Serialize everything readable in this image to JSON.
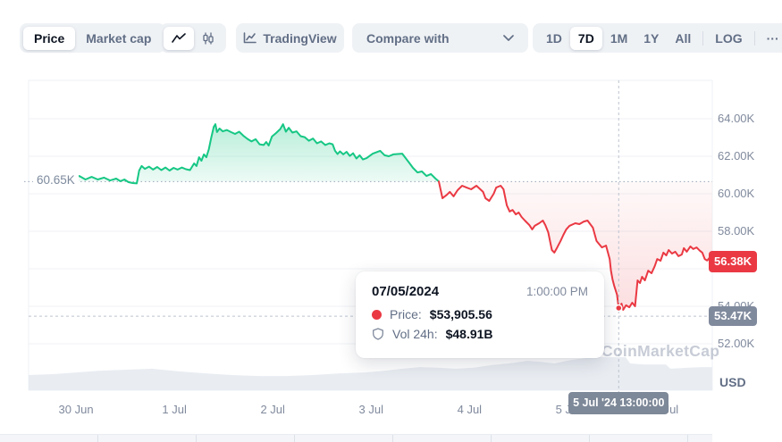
{
  "toolbar": {
    "metric_toggle": {
      "price": "Price",
      "market_cap": "Market cap"
    },
    "tradingview_label": "TradingView",
    "compare_label": "Compare with",
    "ranges": [
      "1D",
      "7D",
      "1M",
      "1Y",
      "All"
    ],
    "selected_range": "7D",
    "log_label": "LOG",
    "more_label": "···"
  },
  "tooltip": {
    "date": "07/05/2024",
    "time": "1:00:00 PM",
    "price_label": "Price:",
    "price_value": "$53,905.56",
    "vol_label": "Vol 24h:",
    "vol_value": "$48.91B"
  },
  "watermark": "CoinMarketCap",
  "colors": {
    "up": "#16c784",
    "down": "#ea3943",
    "badge_gray": "#808a9d",
    "axis_text": "#808a9d",
    "toolbar_bg": "#eff2f5",
    "gridline": "#f0f2f5"
  },
  "chart_data": {
    "type": "line",
    "title": "Price chart, 7D range, USD",
    "unit": "USD",
    "baseline_price": 60650,
    "baseline_label": "60.65K",
    "last_price": 56380,
    "last_price_label": "56.38K",
    "y_gridline_prices": [
      64000,
      62000,
      60000,
      58000,
      56000,
      54000,
      52000
    ],
    "y_ticks": [
      {
        "price": 64000,
        "label": "64.00K"
      },
      {
        "price": 62000,
        "label": "62.00K"
      },
      {
        "price": 60000,
        "label": "60.00K"
      },
      {
        "price": 58000,
        "label": "58.00K"
      },
      {
        "price": 54000,
        "label": "54.00K"
      },
      {
        "price": 52000,
        "label": "52.00K"
      }
    ],
    "x_ticks": [
      {
        "t": 2.2,
        "label": "30 Jun"
      },
      {
        "t": 26.2,
        "label": "1 Jul"
      },
      {
        "t": 50.2,
        "label": "2 Jul"
      },
      {
        "t": 74.2,
        "label": "3 Jul"
      },
      {
        "t": 98.2,
        "label": "4 Jul"
      },
      {
        "t": 122.2,
        "label": "5 Jul"
      },
      {
        "t": 146.2,
        "label": "6 Jul"
      }
    ],
    "crosshair": {
      "t": 134.6,
      "price": 53905.56,
      "hline_price": 53470,
      "hline_label": "53.47K",
      "x_label": "5 Jul '24 13:00:00"
    },
    "series": [
      {
        "name": "price_above_open",
        "color": "#16c784",
        "points": [
          [
            0,
            61000
          ],
          [
            1.5,
            60860
          ],
          [
            3,
            60950
          ],
          [
            4.5,
            60760
          ],
          [
            6,
            60900
          ],
          [
            7.5,
            60760
          ],
          [
            9,
            60860
          ],
          [
            10.5,
            60710
          ],
          [
            12,
            60810
          ],
          [
            13,
            60670
          ],
          [
            14,
            60760
          ],
          [
            15,
            60620
          ],
          [
            16,
            60570
          ],
          [
            17,
            60550
          ],
          [
            17.6,
            61240
          ],
          [
            18.2,
            61480
          ],
          [
            19,
            61330
          ],
          [
            20,
            61450
          ],
          [
            21,
            61290
          ],
          [
            22,
            61430
          ],
          [
            23,
            61260
          ],
          [
            24,
            61400
          ],
          [
            25,
            61240
          ],
          [
            26,
            61380
          ],
          [
            27,
            61290
          ],
          [
            28,
            61400
          ],
          [
            29,
            61310
          ],
          [
            30,
            61260
          ],
          [
            31,
            61620
          ],
          [
            31.6,
            61480
          ],
          [
            32.2,
            61950
          ],
          [
            32.8,
            61760
          ],
          [
            33.4,
            62100
          ],
          [
            34,
            61950
          ],
          [
            34.6,
            62380
          ],
          [
            35.2,
            63000
          ],
          [
            35.8,
            63570
          ],
          [
            36.2,
            63710
          ],
          [
            36.6,
            63290
          ],
          [
            37.2,
            63480
          ],
          [
            38,
            63330
          ],
          [
            39,
            63400
          ],
          [
            40,
            63290
          ],
          [
            41,
            63190
          ],
          [
            42,
            63310
          ],
          [
            43,
            63100
          ],
          [
            44,
            62930
          ],
          [
            45,
            62790
          ],
          [
            46,
            62910
          ],
          [
            47,
            62640
          ],
          [
            48,
            62600
          ],
          [
            48.6,
            62760
          ],
          [
            49.2,
            62570
          ],
          [
            50,
            63050
          ],
          [
            51,
            63240
          ],
          [
            52,
            63450
          ],
          [
            52.7,
            63710
          ],
          [
            53.4,
            63310
          ],
          [
            54.1,
            63520
          ],
          [
            55,
            63260
          ],
          [
            56,
            63330
          ],
          [
            57,
            63070
          ],
          [
            58,
            63020
          ],
          [
            59,
            62830
          ],
          [
            60,
            62950
          ],
          [
            61,
            62690
          ],
          [
            62,
            62790
          ],
          [
            63,
            62600
          ],
          [
            64,
            62690
          ],
          [
            64.8,
            62640
          ],
          [
            65.4,
            62290
          ],
          [
            66,
            62120
          ],
          [
            66.6,
            62260
          ],
          [
            67.4,
            62100
          ],
          [
            68.2,
            62240
          ],
          [
            69,
            62020
          ],
          [
            69.8,
            62160
          ],
          [
            70.6,
            61880
          ],
          [
            71.4,
            62050
          ],
          [
            72.2,
            61830
          ],
          [
            73.1,
            61900
          ],
          [
            74.6,
            62140
          ],
          [
            76.4,
            62290
          ],
          [
            77.5,
            62050
          ],
          [
            78.5,
            62000
          ],
          [
            79.6,
            62100
          ],
          [
            81.8,
            62140
          ],
          [
            83.6,
            61620
          ],
          [
            84.4,
            61380
          ],
          [
            85.5,
            61140
          ],
          [
            86.6,
            61190
          ],
          [
            87.7,
            60950
          ],
          [
            88.8,
            61050
          ],
          [
            89.9,
            60810
          ],
          [
            90.7,
            60650
          ]
        ]
      },
      {
        "name": "price_below_open",
        "color": "#ea3943",
        "points": [
          [
            90.7,
            60650
          ],
          [
            91.6,
            59760
          ],
          [
            92.7,
            59950
          ],
          [
            93.4,
            60100
          ],
          [
            94.3,
            59860
          ],
          [
            95.3,
            60190
          ],
          [
            96.4,
            60430
          ],
          [
            97.5,
            60330
          ],
          [
            98.6,
            60240
          ],
          [
            99.9,
            60430
          ],
          [
            101.5,
            60100
          ],
          [
            102.1,
            59760
          ],
          [
            103,
            59620
          ],
          [
            104.1,
            60000
          ],
          [
            104.7,
            60330
          ],
          [
            105.8,
            60430
          ],
          [
            106.5,
            60240
          ],
          [
            107.3,
            59380
          ],
          [
            108,
            59050
          ],
          [
            108.7,
            59140
          ],
          [
            109.5,
            58900
          ],
          [
            110.2,
            59000
          ],
          [
            110.9,
            58760
          ],
          [
            111.7,
            58570
          ],
          [
            112.8,
            58330
          ],
          [
            113.5,
            58100
          ],
          [
            114.1,
            58290
          ],
          [
            115.2,
            58430
          ],
          [
            116.1,
            58570
          ],
          [
            116.7,
            58330
          ],
          [
            117.4,
            57950
          ],
          [
            118.3,
            57000
          ],
          [
            118.9,
            56860
          ],
          [
            119.6,
            57140
          ],
          [
            120.4,
            57480
          ],
          [
            121.1,
            57810
          ],
          [
            121.8,
            58100
          ],
          [
            122.6,
            58290
          ],
          [
            124,
            58430
          ],
          [
            125,
            58380
          ],
          [
            126.1,
            58520
          ],
          [
            127,
            58570
          ],
          [
            128.3,
            58190
          ],
          [
            129.2,
            57480
          ],
          [
            130.5,
            57140
          ],
          [
            131.5,
            57240
          ],
          [
            132.4,
            56520
          ],
          [
            132.7,
            55900
          ],
          [
            133.1,
            55430
          ],
          [
            133.5,
            55100
          ],
          [
            134.2,
            54620
          ],
          [
            134.6,
            53905.56
          ],
          [
            135.3,
            54140
          ],
          [
            135.7,
            53810
          ],
          [
            136.4,
            54050
          ],
          [
            137.2,
            53950
          ],
          [
            137.9,
            54190
          ],
          [
            138.6,
            54000
          ],
          [
            139.2,
            55380
          ],
          [
            139.8,
            55240
          ],
          [
            140.3,
            55570
          ],
          [
            141,
            55380
          ],
          [
            141.8,
            55900
          ],
          [
            142.6,
            55760
          ],
          [
            143.4,
            56140
          ],
          [
            144,
            56520
          ],
          [
            144.8,
            56430
          ],
          [
            145.5,
            56860
          ],
          [
            146.2,
            56710
          ],
          [
            146.8,
            57000
          ],
          [
            147.6,
            56810
          ],
          [
            148.4,
            56910
          ],
          [
            149.2,
            56670
          ],
          [
            150,
            56760
          ],
          [
            150.5,
            57100
          ],
          [
            151.2,
            56910
          ],
          [
            152.1,
            57190
          ],
          [
            152.8,
            57050
          ],
          [
            153.6,
            57140
          ],
          [
            154.4,
            56960
          ],
          [
            155,
            56860
          ],
          [
            155.6,
            56520
          ],
          [
            156.2,
            56440
          ],
          [
            156.8,
            56600
          ],
          [
            157.4,
            56380
          ]
        ]
      }
    ],
    "volume_profile": [
      [
        -9.4,
        0.46
      ],
      [
        -3,
        0.49
      ],
      [
        2.6,
        0.54
      ],
      [
        7.6,
        0.59
      ],
      [
        14,
        0.62
      ],
      [
        20.7,
        0.65
      ],
      [
        27.3,
        0.57
      ],
      [
        33.8,
        0.51
      ],
      [
        40.3,
        0.46
      ],
      [
        46.9,
        0.43
      ],
      [
        53.4,
        0.43
      ],
      [
        60,
        0.46
      ],
      [
        66.5,
        0.51
      ],
      [
        73,
        0.54
      ],
      [
        77.4,
        0.59
      ],
      [
        81.8,
        0.65
      ],
      [
        86.1,
        0.7
      ],
      [
        90.5,
        0.68
      ],
      [
        94.9,
        0.65
      ],
      [
        99.2,
        0.68
      ],
      [
        103.6,
        0.76
      ],
      [
        107.9,
        0.81
      ],
      [
        112.3,
        0.89
      ],
      [
        115.6,
        0.86
      ],
      [
        118.9,
        0.81
      ],
      [
        123.2,
        0.92
      ],
      [
        126.5,
        0.97
      ],
      [
        127.6,
        1
      ],
      [
        136.3,
        1
      ],
      [
        137.4,
        0.81
      ],
      [
        140.7,
        0.78
      ],
      [
        146.1,
        0.78
      ],
      [
        147.2,
        0.65
      ],
      [
        151.6,
        0.68
      ],
      [
        154.8,
        0.7
      ],
      [
        157.4,
        0.7
      ]
    ]
  }
}
